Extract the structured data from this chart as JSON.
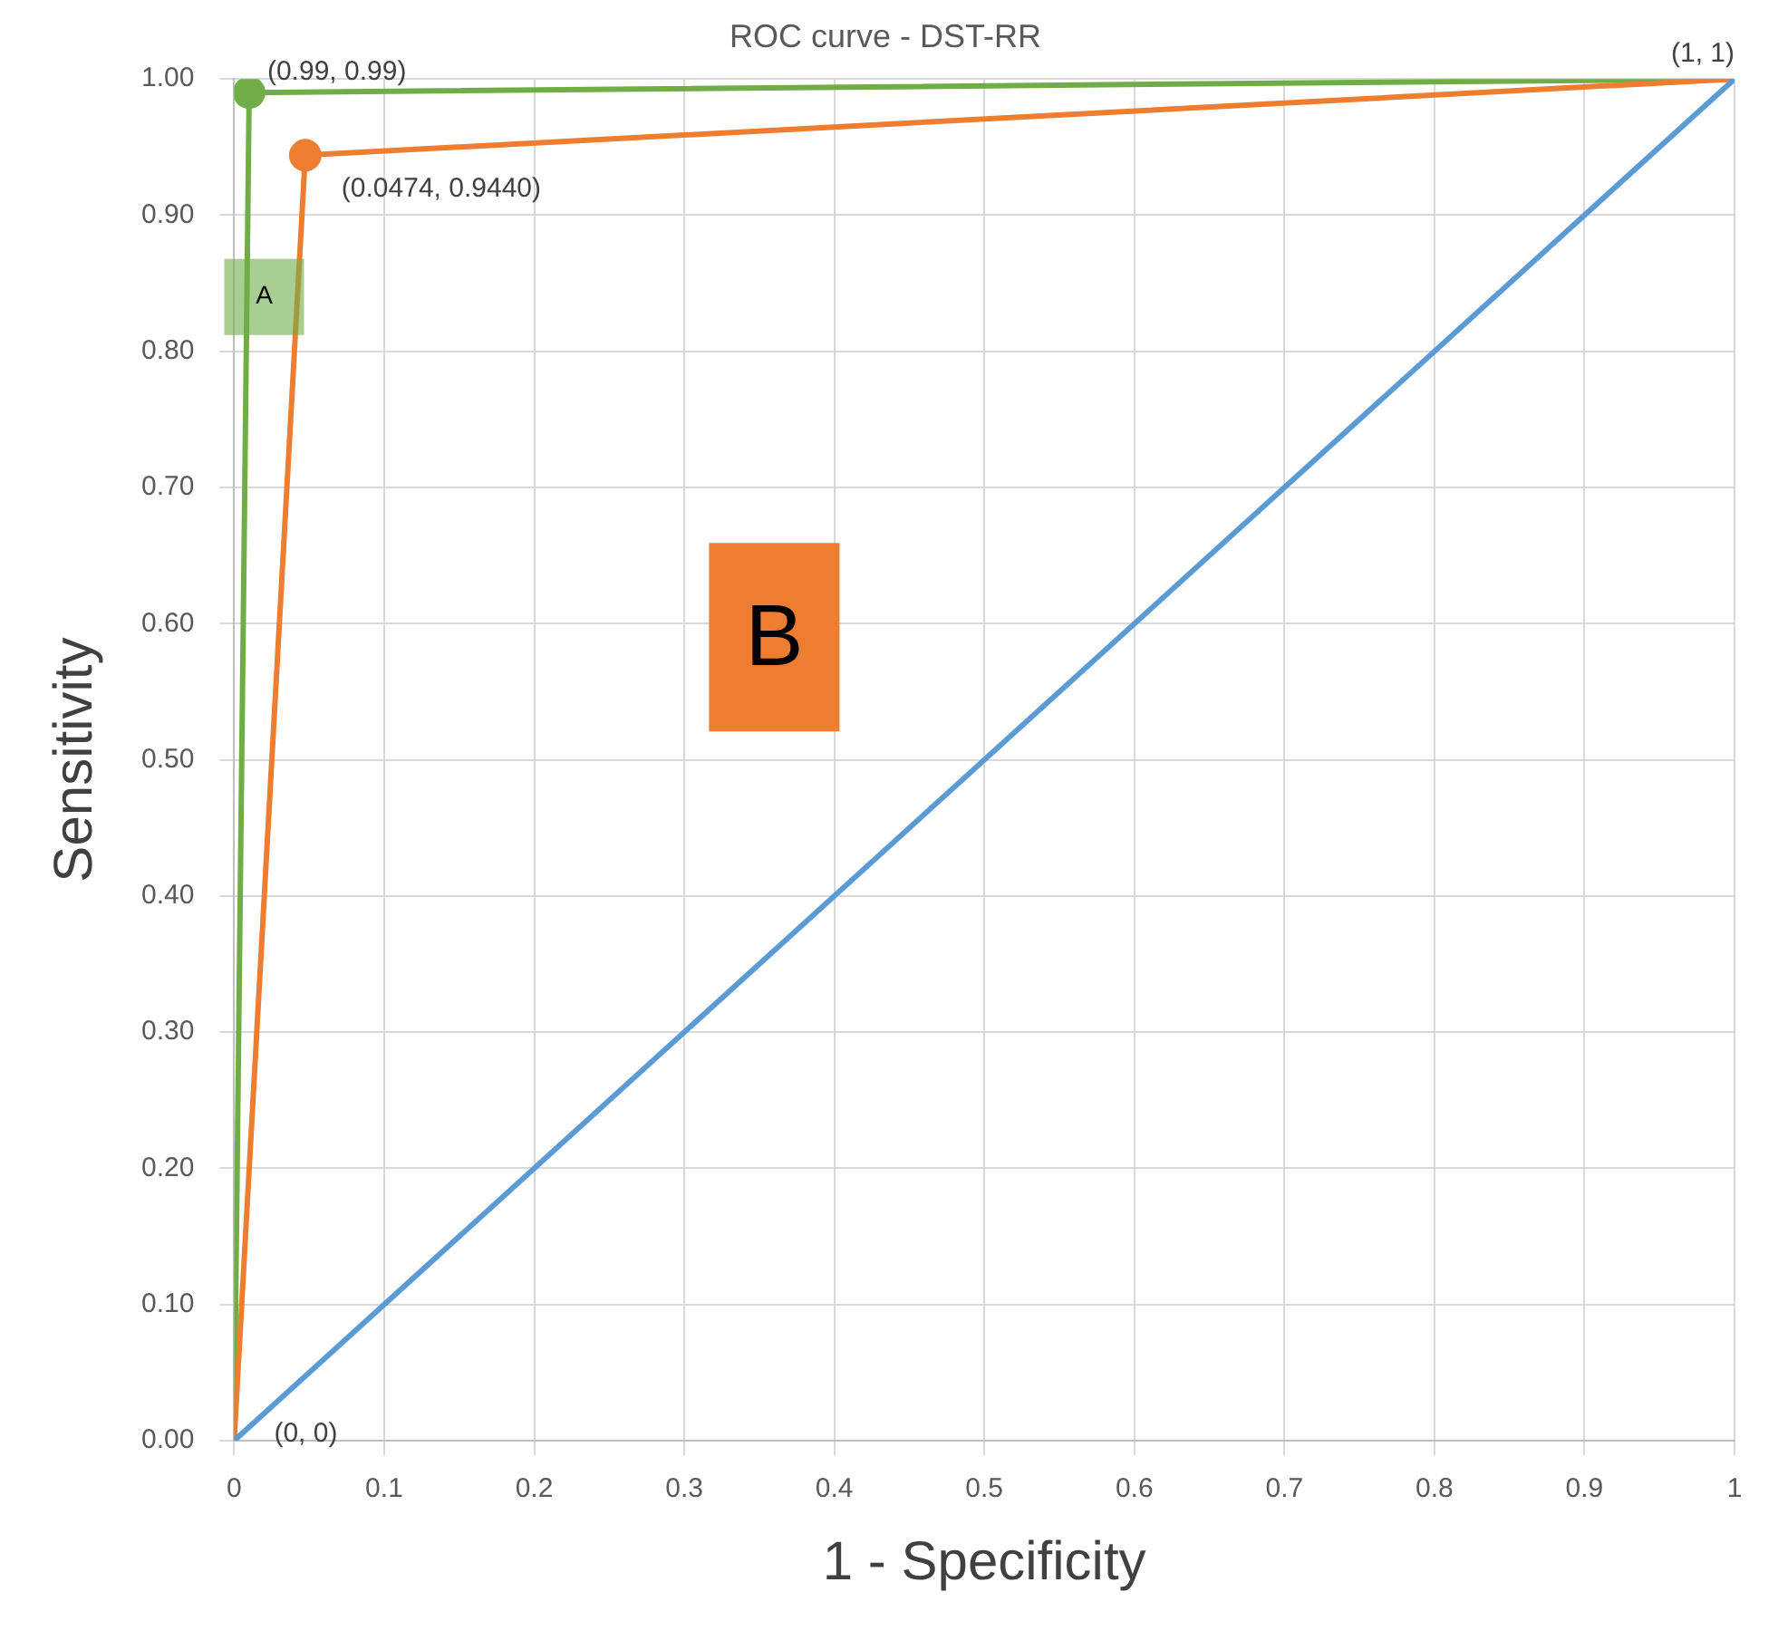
{
  "chart_data": {
    "type": "line",
    "title": "ROC curve - DST-RR",
    "xlabel": "1 - Specificity",
    "ylabel": "Sensitivity",
    "series": [
      {
        "color": "#70ad47",
        "x": [
          0,
          0.01,
          1
        ],
        "values": [
          0,
          0.99,
          1
        ]
      },
      {
        "color": "#ed7d31",
        "x": [
          0,
          0.0474,
          1
        ],
        "values": [
          0,
          0.944,
          1
        ]
      },
      {
        "color": "#5b9bd5",
        "x": [
          0,
          1
        ],
        "values": [
          0,
          1
        ]
      },
      {
        "type": "scatter",
        "marker": "circle",
        "color": "#70ad47",
        "x": [
          0.01
        ],
        "values": [
          0.99
        ]
      },
      {
        "type": "scatter",
        "marker": "circle",
        "color": "#ed7d31",
        "x": [
          0.0474
        ],
        "values": [
          0.944
        ]
      }
    ],
    "xlim": [
      0,
      1
    ],
    "ylim": [
      0,
      1
    ],
    "xticks": [
      0,
      0.1,
      0.2,
      0.3,
      0.4,
      0.5,
      0.6,
      0.7,
      0.8,
      0.9,
      1
    ],
    "yticks": [
      {
        "value": 0,
        "label": "0.00"
      },
      {
        "value": 0.1,
        "label": "0.10"
      },
      {
        "value": 0.2,
        "label": "0.20"
      },
      {
        "value": 0.3,
        "label": "0.30"
      },
      {
        "value": 0.4,
        "label": "0.40"
      },
      {
        "value": 0.5,
        "label": "0.50"
      },
      {
        "value": 0.6,
        "label": "0.60"
      },
      {
        "value": 0.7,
        "label": "0.70"
      },
      {
        "value": 0.8,
        "label": "0.80"
      },
      {
        "value": 0.9,
        "label": "0.90"
      },
      {
        "value": 1,
        "label": "1.00"
      }
    ],
    "annotations": [
      "A",
      "B",
      {
        "text": "(0.99, 0.99)",
        "x": 0.01,
        "y": 0.99
      },
      {
        "text": "(0.0474, 0.9440)",
        "x": 0.0474,
        "y": 0.944
      },
      {
        "text": "(1, 1)",
        "x": 1,
        "y": 1
      },
      {
        "text": "(0, 0)",
        "x": 0,
        "y": 0
      }
    ],
    "grid": true,
    "legend": false
  }
}
